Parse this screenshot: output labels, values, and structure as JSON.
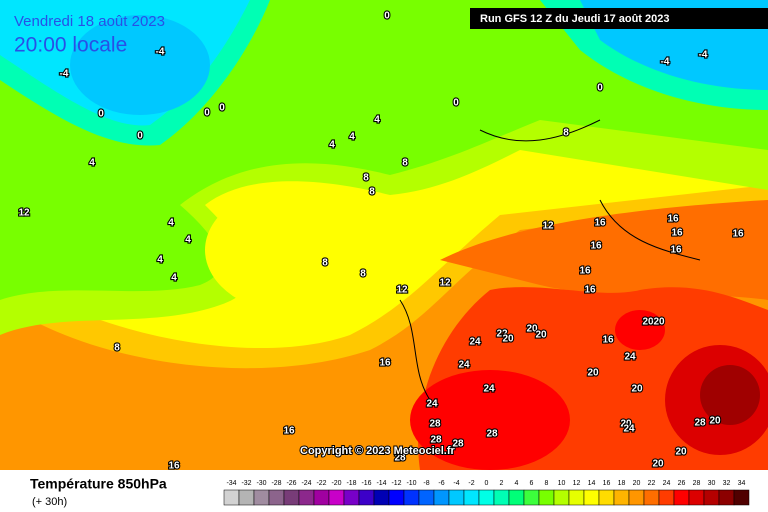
{
  "header": {
    "valid_date": "Vendredi 18 août 2023",
    "local_time": "20:00 locale",
    "run": "Run GFS 12 Z du Jeudi 17 août 2023"
  },
  "copyright": "Copyright © 2023 Meteociel.fr",
  "footer": {
    "title": "Température 850hPa",
    "lead": "(+ 30h)"
  },
  "legend": {
    "values": [
      -34,
      -32,
      -30,
      -28,
      -26,
      -24,
      -22,
      -20,
      -18,
      -16,
      -14,
      -12,
      -10,
      -8,
      -6,
      -4,
      -2,
      0,
      2,
      4,
      6,
      8,
      10,
      12,
      14,
      16,
      18,
      20,
      22,
      24,
      26,
      28,
      30,
      32,
      34
    ],
    "colors": [
      "#d2d2d2",
      "#b4b4b4",
      "#a08ca0",
      "#8c648c",
      "#783c78",
      "#8c288c",
      "#a000a0",
      "#c800c8",
      "#7800c8",
      "#3c00c8",
      "#0000b4",
      "#0000ff",
      "#0032ff",
      "#0064ff",
      "#0096ff",
      "#00c8ff",
      "#00e6ff",
      "#00ffe6",
      "#00ffb4",
      "#00ff78",
      "#3cff3c",
      "#78ff00",
      "#b4ff00",
      "#e6ff00",
      "#ffff00",
      "#ffdc00",
      "#ffb400",
      "#ff9600",
      "#ff6e00",
      "#ff3c00",
      "#ff0000",
      "#dc0000",
      "#b40000",
      "#8c0000",
      "#500000"
    ]
  },
  "contour_labels": [
    0,
    -4,
    -4,
    0,
    0,
    0,
    0,
    0,
    0,
    -4,
    -4,
    4,
    4,
    4,
    4,
    8,
    8,
    8,
    8,
    12,
    4,
    4,
    4,
    4,
    8,
    8,
    12,
    12,
    8,
    16,
    16,
    16,
    16,
    16,
    16,
    16,
    16,
    16,
    16,
    16,
    24,
    24,
    24,
    24,
    28,
    28,
    28,
    28,
    28,
    22,
    20,
    20,
    20,
    16,
    24,
    20,
    20,
    20,
    20,
    20,
    24,
    28,
    20,
    20,
    20,
    12
  ]
}
